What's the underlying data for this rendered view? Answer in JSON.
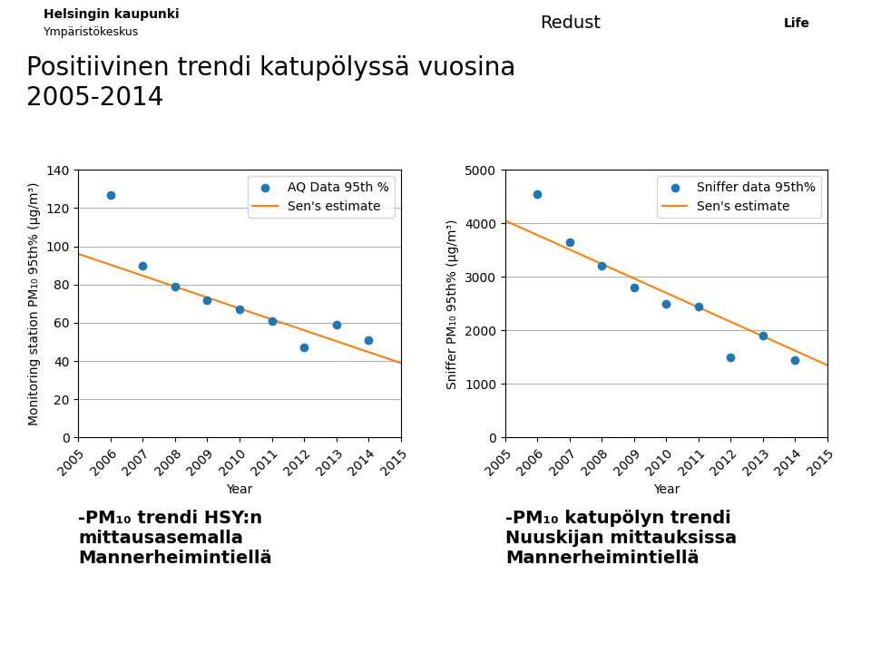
{
  "title": "Positiivinen trendi katupölyssä vuosina\n2005-2014",
  "annotations": [
    "Helsingin kaupunki",
    "Ympäristökeskus",
    "Redust",
    "Life"
  ],
  "chart_data": [
    {
      "type": "scatter",
      "xlabel": "Year",
      "ylabel": "Monitoring station PM₁₀ 95th% (μg/m³)",
      "series": [
        {
          "name": "AQ Data 95th %",
          "type": "scatter",
          "x": [
            2006,
            2007,
            2008,
            2009,
            2010,
            2011,
            2012,
            2013,
            2014
          ],
          "values": [
            127,
            90,
            79,
            72,
            67,
            61,
            47,
            59,
            51
          ]
        },
        {
          "name": "Sen's estimate",
          "type": "line",
          "x": [
            2005,
            2015
          ],
          "values": [
            96,
            39
          ]
        }
      ],
      "xlim": [
        2005,
        2015
      ],
      "xticks": [
        2005,
        2006,
        2007,
        2008,
        2009,
        2010,
        2011,
        2012,
        2013,
        2014,
        2015
      ],
      "ylim": [
        0,
        140
      ],
      "yticks": [
        0,
        20,
        40,
        60,
        80,
        100,
        120,
        140
      ],
      "grid": "y",
      "legend": "upper right",
      "annotations": [
        "-PM₁₀ trendi HSY:n\nmittausasemalla\nMannerheimintiellä"
      ]
    },
    {
      "type": "scatter",
      "xlabel": "Year",
      "ylabel": "Sniffer PM₁₀ 95th% (μg/m³)",
      "series": [
        {
          "name": "Sniffer data 95th%",
          "type": "scatter",
          "x": [
            2006,
            2007,
            2008,
            2009,
            2010,
            2011,
            2012,
            2013,
            2014
          ],
          "values": [
            4550,
            3650,
            3200,
            2800,
            2500,
            2450,
            1500,
            1900,
            1450
          ]
        },
        {
          "name": "Sen's estimate",
          "type": "line",
          "x": [
            2005,
            2015
          ],
          "values": [
            4050,
            1350
          ]
        }
      ],
      "xlim": [
        2005,
        2015
      ],
      "xticks": [
        2005,
        2006,
        2007,
        2008,
        2009,
        2010,
        2011,
        2012,
        2013,
        2014,
        2015
      ],
      "ylim": [
        0,
        5000
      ],
      "yticks": [
        0,
        1000,
        2000,
        3000,
        4000,
        5000
      ],
      "grid": "y",
      "legend": "upper right",
      "annotations": [
        "-PM₁₀ katupölyn trendi\nNuuskijan mittauksissa\nMannerheimintiellä"
      ]
    }
  ]
}
